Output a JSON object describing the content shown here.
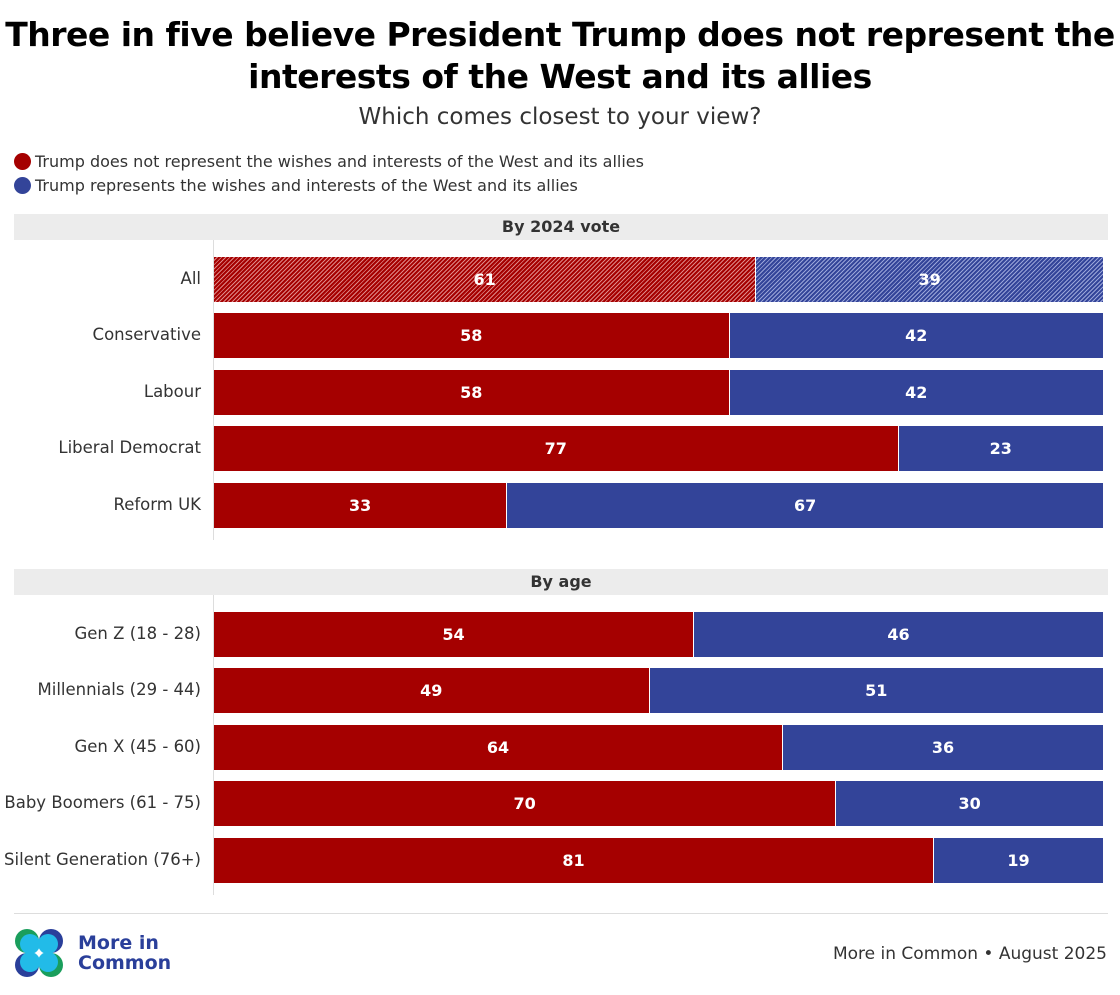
{
  "title": "Three in five believe President Trump does not represent the interests of the West and its allies",
  "subtitle": "Which comes closest to your view?",
  "colors": {
    "not_represent": "#a50000",
    "represent": "#334499"
  },
  "legend": [
    "Trump does not represent the wishes and interests of the West and its allies",
    "Trump represents the wishes and interests of the West and its allies"
  ],
  "chart_data": {
    "type": "bar",
    "orientation": "horizontal-stacked-100",
    "series_names": [
      "Trump does not represent the wishes and interests of the West and its allies",
      "Trump represents the wishes and interests of the West and its allies"
    ],
    "groups": [
      {
        "title": "By 2024 vote",
        "rows": [
          {
            "label": "All",
            "values": [
              61,
              39
            ],
            "hatched": true
          },
          {
            "label": "Conservative",
            "values": [
              58,
              42
            ]
          },
          {
            "label": "Labour",
            "values": [
              58,
              42
            ]
          },
          {
            "label": "Liberal Democrat",
            "values": [
              77,
              23
            ]
          },
          {
            "label": "Reform UK",
            "values": [
              33,
              67
            ]
          }
        ]
      },
      {
        "title": "By age",
        "rows": [
          {
            "label": "Gen Z (18 - 28)",
            "values": [
              54,
              46
            ]
          },
          {
            "label": "Millennials (29 - 44)",
            "values": [
              49,
              51
            ]
          },
          {
            "label": "Gen X (45 - 60)",
            "values": [
              64,
              36
            ]
          },
          {
            "label": "Baby Boomers (61 - 75)",
            "values": [
              70,
              30
            ]
          },
          {
            "label": "Silent Generation (76+)",
            "values": [
              81,
              19
            ]
          }
        ]
      }
    ]
  },
  "footer": {
    "logo_text": "More in Common",
    "source": "More in Common • August 2025"
  }
}
